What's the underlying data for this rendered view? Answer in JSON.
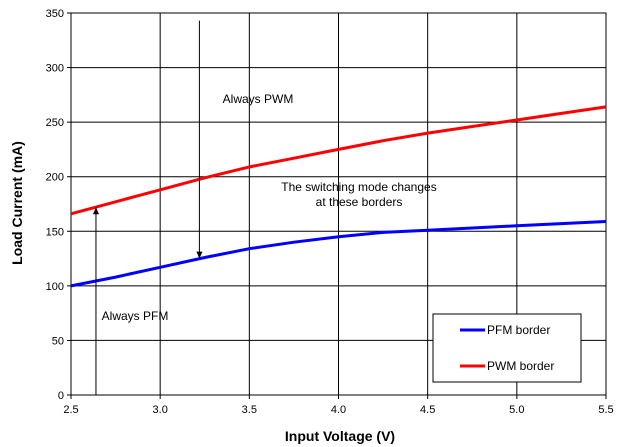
{
  "chart_data": {
    "type": "line",
    "xlabel": "Input Voltage (V)",
    "ylabel": "Load Current (mA)",
    "xlim": [
      2.5,
      5.5
    ],
    "ylim": [
      0,
      350
    ],
    "x_ticks": [
      "2.5",
      "3.0",
      "3.5",
      "4.0",
      "4.5",
      "5.0",
      "5.5"
    ],
    "y_ticks": [
      "0",
      "50",
      "100",
      "150",
      "200",
      "250",
      "300",
      "350"
    ],
    "grid": true,
    "legend_position": "bottom-right",
    "series": [
      {
        "name": "PFM border",
        "color": "#0000ff",
        "x": [
          2.5,
          2.75,
          3.0,
          3.25,
          3.5,
          3.75,
          4.0,
          4.25,
          4.5,
          4.75,
          5.0,
          5.25,
          5.5
        ],
        "y": [
          100,
          108,
          117,
          126,
          134,
          140,
          145,
          149,
          151,
          153,
          155,
          157,
          159
        ]
      },
      {
        "name": "PWM border",
        "color": "#ff0000",
        "x": [
          2.5,
          2.75,
          3.0,
          3.25,
          3.5,
          3.75,
          4.0,
          4.25,
          4.5,
          4.75,
          5.0,
          5.25,
          5.5
        ],
        "y": [
          166,
          177,
          188,
          199,
          209,
          217,
          225,
          233,
          240,
          246,
          252,
          258,
          264
        ]
      }
    ],
    "annotations": {
      "always_pwm": "Always PWM",
      "always_pfm": "Always PFM",
      "mode_change_line1": "The switching mode changes",
      "mode_change_line2": "at these borders"
    }
  }
}
